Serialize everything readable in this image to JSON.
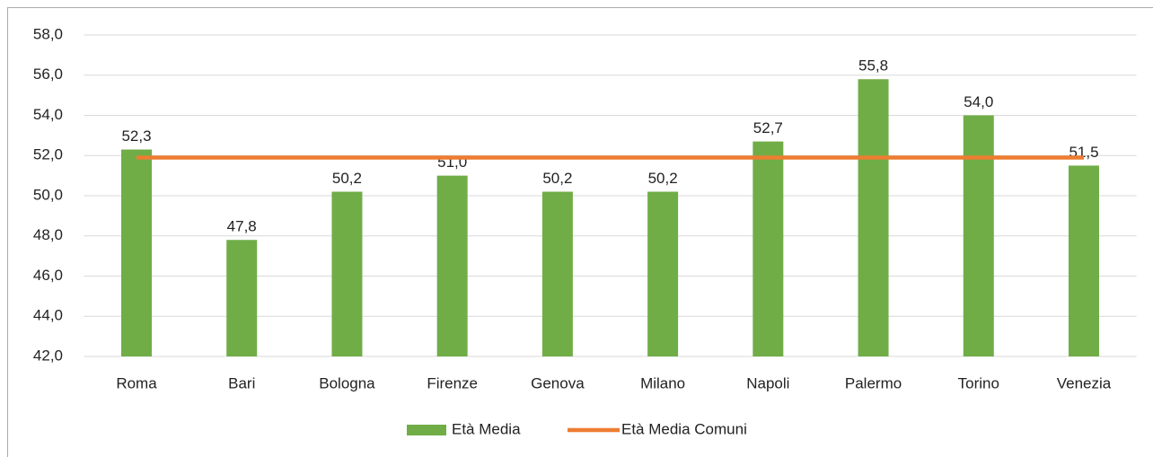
{
  "chart_data": {
    "type": "bar",
    "categories": [
      "Roma",
      "Bari",
      "Bologna",
      "Firenze",
      "Genova",
      "Milano",
      "Napoli",
      "Palermo",
      "Torino",
      "Venezia"
    ],
    "series": [
      {
        "name": "Età Media",
        "type": "bar",
        "color": "#70ad47",
        "values": [
          52.3,
          47.8,
          50.2,
          51.0,
          50.2,
          50.2,
          52.7,
          55.8,
          54.0,
          51.5
        ],
        "value_labels": [
          "52,3",
          "47,8",
          "50,2",
          "51,0",
          "50,2",
          "50,2",
          "52,7",
          "55,8",
          "54,0",
          "51,5"
        ]
      },
      {
        "name": "Età Media Comuni",
        "type": "line",
        "color": "#ed7d31",
        "values": [
          51.9,
          51.9,
          51.9,
          51.9,
          51.9,
          51.9,
          51.9,
          51.9,
          51.9,
          51.9
        ]
      }
    ],
    "ylim": [
      42,
      58
    ],
    "yticks": [
      {
        "value": 42,
        "label": "42,0"
      },
      {
        "value": 44,
        "label": "44,0"
      },
      {
        "value": 46,
        "label": "46,0"
      },
      {
        "value": 48,
        "label": "48,0"
      },
      {
        "value": 50,
        "label": "50,0"
      },
      {
        "value": 52,
        "label": "52,0"
      },
      {
        "value": 54,
        "label": "54,0"
      },
      {
        "value": 56,
        "label": "56,0"
      },
      {
        "value": 58,
        "label": "58,0"
      }
    ],
    "grid": true,
    "legend": "bottom"
  }
}
